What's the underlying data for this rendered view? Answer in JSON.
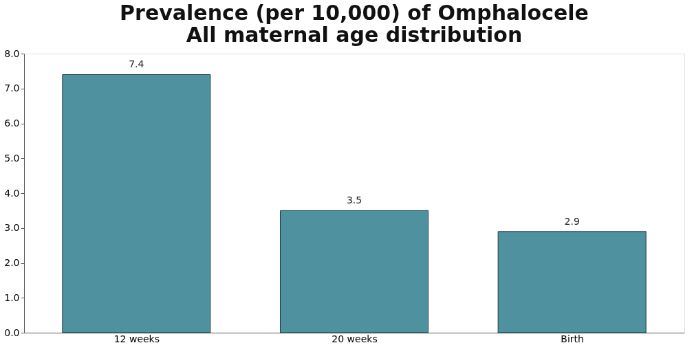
{
  "chart_data": {
    "type": "bar",
    "title": [
      "Prevalence (per 10,000) of Omphalocele",
      "All maternal age distribution"
    ],
    "categories": [
      "12 weeks",
      "20 weeks",
      "Birth"
    ],
    "values": [
      7.4,
      3.5,
      2.9
    ],
    "color": "#4f919f",
    "ylim": [
      0,
      8
    ],
    "yticks": [
      {
        "value": 0,
        "label": "0.0"
      },
      {
        "value": 1,
        "label": "1.0"
      },
      {
        "value": 2,
        "label": "2.0"
      },
      {
        "value": 3,
        "label": "3.0"
      },
      {
        "value": 4,
        "label": "4.0"
      },
      {
        "value": 5,
        "label": "5.0"
      },
      {
        "value": 6,
        "label": "6.0"
      },
      {
        "value": 7,
        "label": "7.0"
      },
      {
        "value": 8,
        "label": "8.0"
      }
    ],
    "data_labels": true,
    "legend": false,
    "grid": false
  }
}
